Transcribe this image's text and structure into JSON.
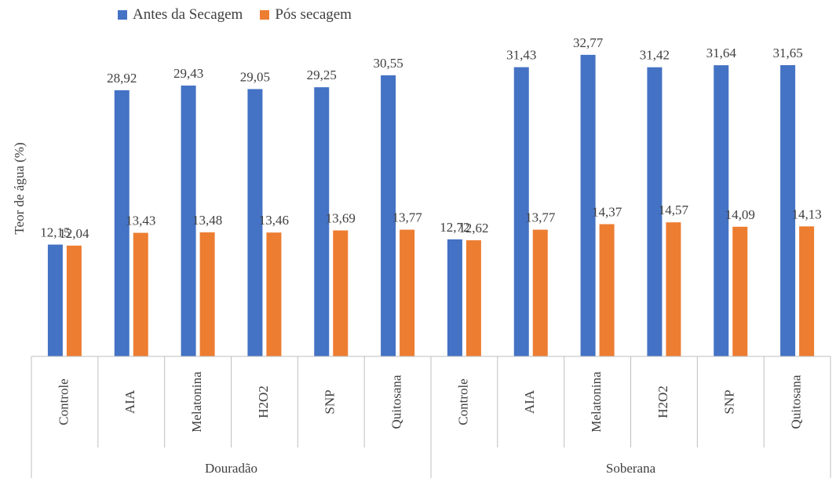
{
  "chart_data": {
    "type": "bar",
    "title": "",
    "xlabel": "",
    "ylabel": "Teor de água (%)",
    "ylim": [
      0,
      36
    ],
    "grid": false,
    "legend_position": "top",
    "groups": [
      {
        "name": "Douradão",
        "categories": [
          "Controle",
          "AIA",
          "Melatonina",
          "H2O2",
          "SNP",
          "Quitosana"
        ]
      },
      {
        "name": "Soberana",
        "categories": [
          "Controle",
          "AIA",
          "Melatonina",
          "H2O2",
          "SNP",
          "Quitosana"
        ]
      }
    ],
    "series": [
      {
        "name": "Antes da Secagem",
        "color": "#4472C4",
        "values": [
          12.15,
          28.92,
          29.43,
          29.05,
          29.25,
          30.55,
          12.72,
          31.43,
          32.77,
          31.42,
          31.64,
          31.65
        ],
        "labels": [
          "12,15",
          "28,92",
          "29,43",
          "29,05",
          "29,25",
          "30,55",
          "12,72",
          "31,43",
          "32,77",
          "31,42",
          "31,64",
          "31,65"
        ]
      },
      {
        "name": "Pós secagem",
        "color": "#ED7D31",
        "values": [
          12.04,
          13.43,
          13.48,
          13.46,
          13.69,
          13.77,
          12.62,
          13.77,
          14.37,
          14.57,
          14.09,
          14.13
        ],
        "labels": [
          "12,04",
          "13,43",
          "13,48",
          "13,46",
          "13,69",
          "13,77",
          "12,62",
          "13,77",
          "14,37",
          "14,57",
          "14,09",
          "14,13"
        ]
      }
    ]
  }
}
